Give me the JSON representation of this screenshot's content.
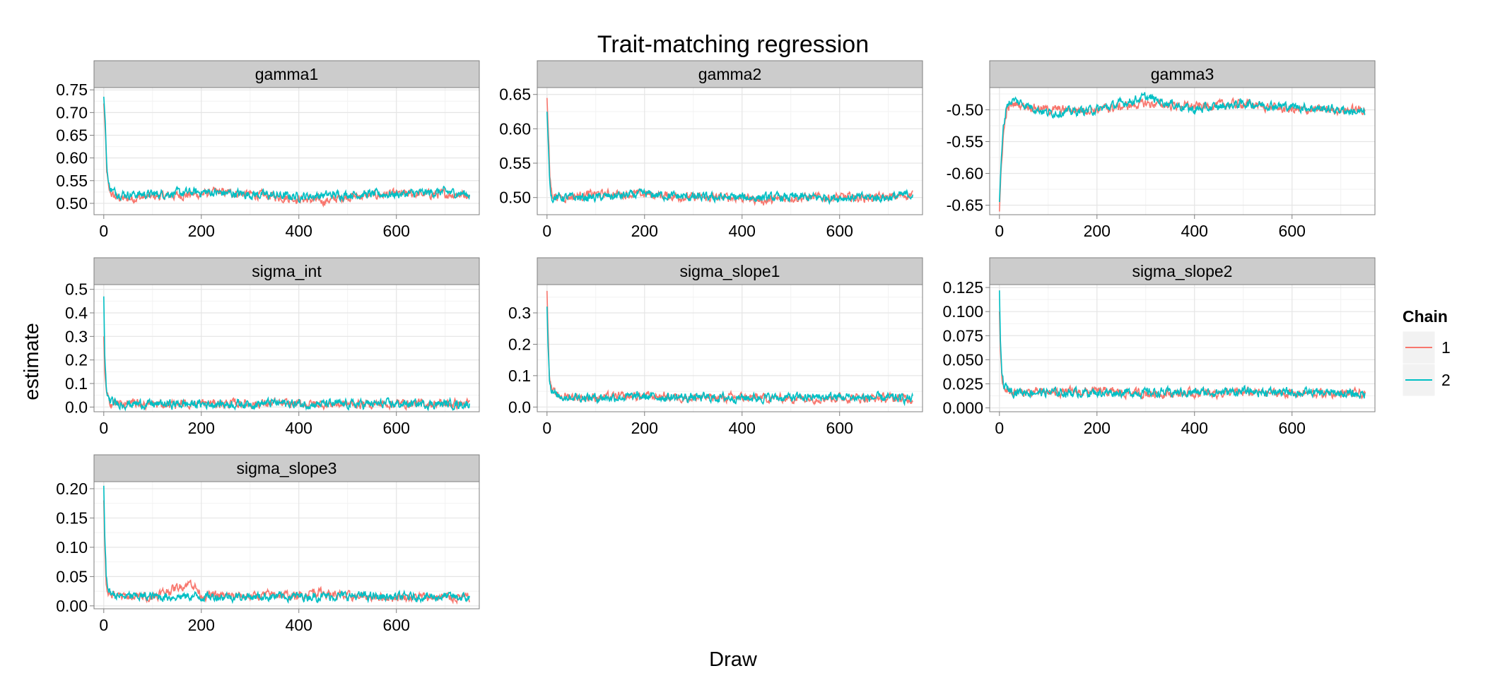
{
  "chart_data": {
    "type": "line",
    "title": "Trait-matching regression",
    "xlabel": "Draw",
    "ylabel": "estimate",
    "grid": true,
    "legend": {
      "title": "Chain",
      "placement": "right",
      "entries": [
        {
          "label": "1",
          "color": "#F8766D"
        },
        {
          "label": "2",
          "color": "#00BFC4"
        }
      ]
    },
    "xlim": [
      -20,
      770
    ],
    "xticks": [
      0,
      200,
      400,
      600
    ],
    "xtick_labels": [
      "0",
      "200",
      "400",
      "600"
    ],
    "draws": 750,
    "panels": [
      {
        "name": "gamma1",
        "ylim": [
          0.475,
          0.755
        ],
        "yticks": [
          0.5,
          0.55,
          0.6,
          0.65,
          0.7,
          0.75
        ],
        "ytick_labels": [
          "0.50",
          "0.55",
          "0.60",
          "0.65",
          "0.70",
          "0.75"
        ],
        "series": [
          {
            "chain": "1",
            "points": [
              [
                0,
                0.72
              ],
              [
                3,
                0.66
              ],
              [
                6,
                0.57
              ],
              [
                10,
                0.53
              ],
              [
                20,
                0.515
              ],
              [
                40,
                0.51
              ],
              [
                100,
                0.515
              ],
              [
                200,
                0.52
              ],
              [
                230,
                0.525
              ],
              [
                300,
                0.52
              ],
              [
                400,
                0.51
              ],
              [
                450,
                0.505
              ],
              [
                500,
                0.515
              ],
              [
                600,
                0.52
              ],
              [
                700,
                0.52
              ],
              [
                750,
                0.52
              ]
            ]
          },
          {
            "chain": "2",
            "points": [
              [
                0,
                0.735
              ],
              [
                3,
                0.68
              ],
              [
                6,
                0.59
              ],
              [
                10,
                0.54
              ],
              [
                20,
                0.525
              ],
              [
                40,
                0.52
              ],
              [
                100,
                0.52
              ],
              [
                200,
                0.525
              ],
              [
                300,
                0.52
              ],
              [
                400,
                0.515
              ],
              [
                500,
                0.52
              ],
              [
                600,
                0.52
              ],
              [
                700,
                0.525
              ],
              [
                750,
                0.52
              ]
            ]
          }
        ]
      },
      {
        "name": "gamma2",
        "ylim": [
          0.475,
          0.66
        ],
        "yticks": [
          0.5,
          0.55,
          0.6,
          0.65
        ],
        "ytick_labels": [
          "0.50",
          "0.55",
          "0.60",
          "0.65"
        ],
        "series": [
          {
            "chain": "1",
            "points": [
              [
                0,
                0.645
              ],
              [
                3,
                0.59
              ],
              [
                6,
                0.53
              ],
              [
                10,
                0.505
              ],
              [
                30,
                0.5
              ],
              [
                100,
                0.505
              ],
              [
                200,
                0.505
              ],
              [
                300,
                0.5
              ],
              [
                400,
                0.5
              ],
              [
                450,
                0.495
              ],
              [
                500,
                0.5
              ],
              [
                600,
                0.5
              ],
              [
                700,
                0.5
              ],
              [
                750,
                0.505
              ]
            ]
          },
          {
            "chain": "2",
            "points": [
              [
                0,
                0.625
              ],
              [
                3,
                0.57
              ],
              [
                6,
                0.52
              ],
              [
                10,
                0.5
              ],
              [
                30,
                0.5
              ],
              [
                100,
                0.5
              ],
              [
                200,
                0.505
              ],
              [
                300,
                0.5
              ],
              [
                400,
                0.5
              ],
              [
                500,
                0.5
              ],
              [
                600,
                0.5
              ],
              [
                700,
                0.5
              ],
              [
                750,
                0.505
              ]
            ]
          }
        ]
      },
      {
        "name": "gamma3",
        "ylim": [
          -0.665,
          -0.465
        ],
        "yticks": [
          -0.65,
          -0.6,
          -0.55,
          -0.5
        ],
        "ytick_labels": [
          "-0.65",
          "-0.60",
          "-0.55",
          "-0.50"
        ],
        "series": [
          {
            "chain": "1",
            "points": [
              [
                0,
                -0.66
              ],
              [
                3,
                -0.6
              ],
              [
                8,
                -0.54
              ],
              [
                15,
                -0.5
              ],
              [
                30,
                -0.49
              ],
              [
                100,
                -0.5
              ],
              [
                200,
                -0.5
              ],
              [
                300,
                -0.49
              ],
              [
                400,
                -0.495
              ],
              [
                500,
                -0.49
              ],
              [
                600,
                -0.5
              ],
              [
                700,
                -0.5
              ],
              [
                750,
                -0.5
              ]
            ]
          },
          {
            "chain": "2",
            "points": [
              [
                0,
                -0.645
              ],
              [
                3,
                -0.59
              ],
              [
                8,
                -0.53
              ],
              [
                15,
                -0.49
              ],
              [
                30,
                -0.485
              ],
              [
                100,
                -0.505
              ],
              [
                200,
                -0.5
              ],
              [
                300,
                -0.48
              ],
              [
                400,
                -0.5
              ],
              [
                500,
                -0.49
              ],
              [
                600,
                -0.495
              ],
              [
                700,
                -0.5
              ],
              [
                750,
                -0.505
              ]
            ]
          }
        ]
      },
      {
        "name": "sigma_int",
        "ylim": [
          -0.02,
          0.52
        ],
        "yticks": [
          0.0,
          0.1,
          0.2,
          0.3,
          0.4,
          0.5
        ],
        "ytick_labels": [
          "0.0",
          "0.1",
          "0.2",
          "0.3",
          "0.4",
          "0.5"
        ],
        "series": [
          {
            "chain": "1",
            "points": [
              [
                0,
                0.3
              ],
              [
                2,
                0.15
              ],
              [
                5,
                0.06
              ],
              [
                10,
                0.025
              ],
              [
                20,
                0.015
              ],
              [
                100,
                0.012
              ],
              [
                200,
                0.015
              ],
              [
                300,
                0.015
              ],
              [
                400,
                0.013
              ],
              [
                500,
                0.012
              ],
              [
                600,
                0.015
              ],
              [
                700,
                0.014
              ],
              [
                750,
                0.013
              ]
            ]
          },
          {
            "chain": "2",
            "points": [
              [
                0,
                0.47
              ],
              [
                2,
                0.22
              ],
              [
                5,
                0.08
              ],
              [
                10,
                0.03
              ],
              [
                20,
                0.015
              ],
              [
                100,
                0.012
              ],
              [
                200,
                0.013
              ],
              [
                300,
                0.014
              ],
              [
                350,
                0.018
              ],
              [
                400,
                0.013
              ],
              [
                500,
                0.012
              ],
              [
                600,
                0.013
              ],
              [
                700,
                0.013
              ],
              [
                750,
                0.012
              ]
            ]
          }
        ]
      },
      {
        "name": "sigma_slope1",
        "ylim": [
          -0.015,
          0.39
        ],
        "yticks": [
          0.0,
          0.1,
          0.2,
          0.3
        ],
        "ytick_labels": [
          "0.0",
          "0.1",
          "0.2",
          "0.3"
        ],
        "series": [
          {
            "chain": "1",
            "points": [
              [
                0,
                0.37
              ],
              [
                2,
                0.25
              ],
              [
                5,
                0.1
              ],
              [
                10,
                0.05
              ],
              [
                20,
                0.035
              ],
              [
                100,
                0.03
              ],
              [
                200,
                0.035
              ],
              [
                300,
                0.03
              ],
              [
                400,
                0.03
              ],
              [
                500,
                0.028
              ],
              [
                600,
                0.03
              ],
              [
                700,
                0.028
              ],
              [
                750,
                0.025
              ]
            ]
          },
          {
            "chain": "2",
            "points": [
              [
                0,
                0.32
              ],
              [
                2,
                0.2
              ],
              [
                5,
                0.09
              ],
              [
                10,
                0.05
              ],
              [
                20,
                0.035
              ],
              [
                100,
                0.03
              ],
              [
                200,
                0.033
              ],
              [
                300,
                0.03
              ],
              [
                400,
                0.03
              ],
              [
                500,
                0.03
              ],
              [
                600,
                0.032
              ],
              [
                700,
                0.028
              ],
              [
                750,
                0.027
              ]
            ]
          }
        ]
      },
      {
        "name": "sigma_slope2",
        "ylim": [
          -0.004,
          0.128
        ],
        "yticks": [
          0.0,
          0.025,
          0.05,
          0.075,
          0.1,
          0.125
        ],
        "ytick_labels": [
          "0.000",
          "0.025",
          "0.050",
          "0.075",
          "0.100",
          "0.125"
        ],
        "series": [
          {
            "chain": "1",
            "points": [
              [
                0,
                0.1
              ],
              [
                2,
                0.06
              ],
              [
                5,
                0.03
              ],
              [
                10,
                0.02
              ],
              [
                30,
                0.016
              ],
              [
                100,
                0.016
              ],
              [
                200,
                0.017
              ],
              [
                300,
                0.015
              ],
              [
                400,
                0.015
              ],
              [
                500,
                0.016
              ],
              [
                600,
                0.015
              ],
              [
                700,
                0.015
              ],
              [
                750,
                0.014
              ]
            ]
          },
          {
            "chain": "2",
            "points": [
              [
                0,
                0.122
              ],
              [
                2,
                0.07
              ],
              [
                5,
                0.035
              ],
              [
                10,
                0.022
              ],
              [
                30,
                0.017
              ],
              [
                100,
                0.016
              ],
              [
                200,
                0.016
              ],
              [
                300,
                0.016
              ],
              [
                400,
                0.016
              ],
              [
                500,
                0.017
              ],
              [
                600,
                0.016
              ],
              [
                700,
                0.015
              ],
              [
                750,
                0.014
              ]
            ]
          }
        ]
      },
      {
        "name": "sigma_slope3",
        "ylim": [
          -0.005,
          0.212
        ],
        "yticks": [
          0.0,
          0.05,
          0.1,
          0.15,
          0.2
        ],
        "ytick_labels": [
          "0.00",
          "0.05",
          "0.10",
          "0.15",
          "0.20"
        ],
        "series": [
          {
            "chain": "1",
            "points": [
              [
                0,
                0.18
              ],
              [
                2,
                0.1
              ],
              [
                5,
                0.04
              ],
              [
                10,
                0.02
              ],
              [
                30,
                0.016
              ],
              [
                100,
                0.016
              ],
              [
                180,
                0.04
              ],
              [
                200,
                0.018
              ],
              [
                300,
                0.016
              ],
              [
                350,
                0.02
              ],
              [
                400,
                0.016
              ],
              [
                430,
                0.025
              ],
              [
                500,
                0.016
              ],
              [
                600,
                0.015
              ],
              [
                700,
                0.015
              ],
              [
                750,
                0.014
              ]
            ]
          },
          {
            "chain": "2",
            "points": [
              [
                0,
                0.205
              ],
              [
                2,
                0.12
              ],
              [
                5,
                0.05
              ],
              [
                10,
                0.025
              ],
              [
                30,
                0.016
              ],
              [
                100,
                0.016
              ],
              [
                200,
                0.016
              ],
              [
                300,
                0.016
              ],
              [
                400,
                0.016
              ],
              [
                500,
                0.017
              ],
              [
                600,
                0.015
              ],
              [
                700,
                0.016
              ],
              [
                750,
                0.013
              ]
            ]
          }
        ]
      }
    ]
  }
}
